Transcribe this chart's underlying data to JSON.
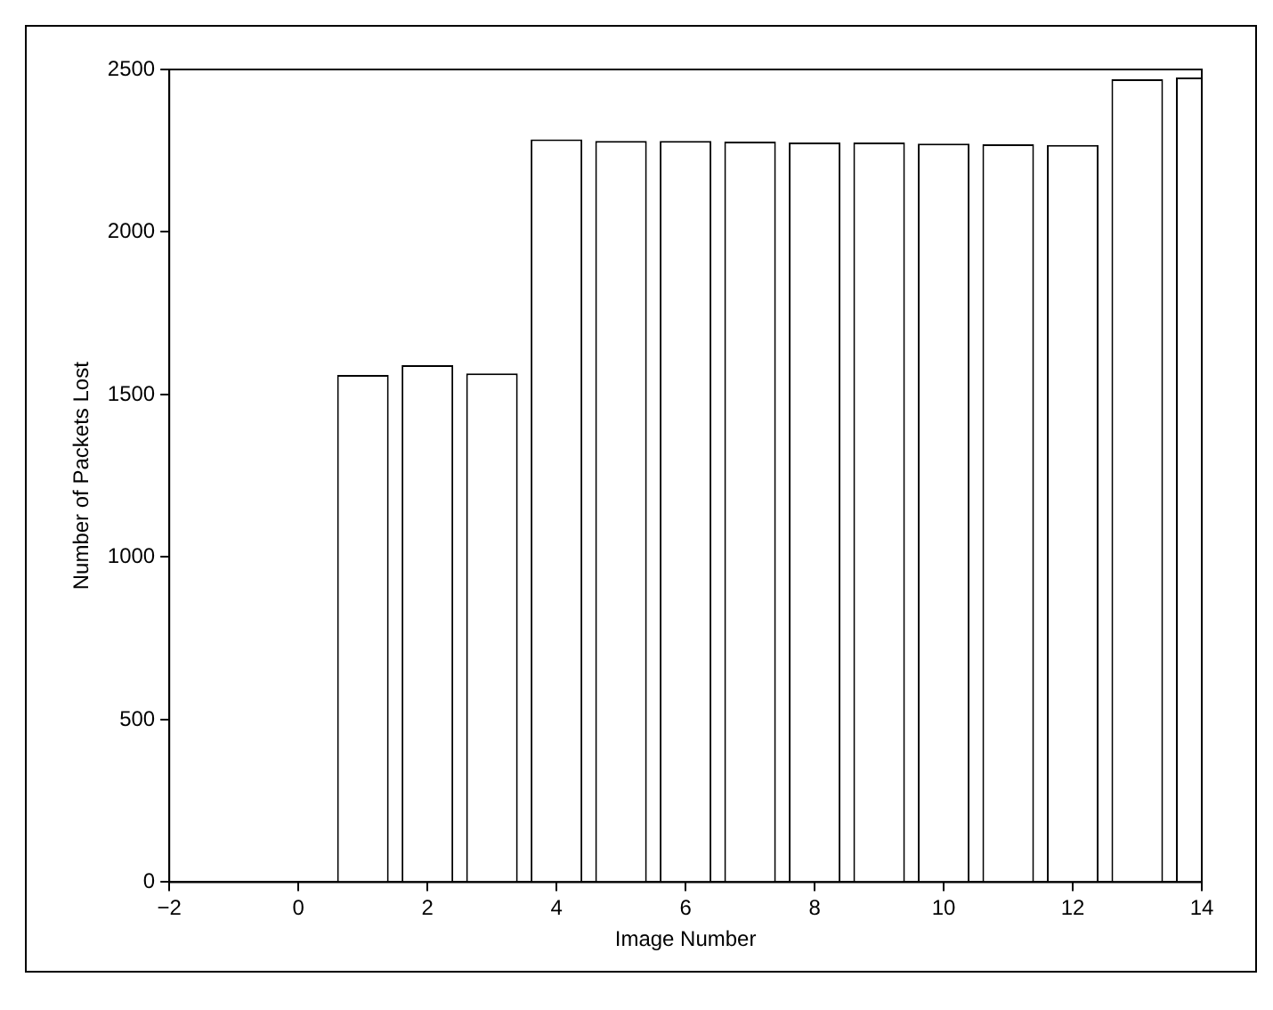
{
  "chart_data": {
    "type": "bar",
    "xlabel": "Image Number",
    "ylabel": "Number of Packets Lost",
    "x": [
      1,
      2,
      3,
      4,
      5,
      6,
      7,
      8,
      9,
      10,
      11,
      12,
      13,
      14
    ],
    "values": [
      1560,
      1590,
      1565,
      2285,
      2280,
      2280,
      2278,
      2275,
      2275,
      2272,
      2270,
      2268,
      2470,
      2475
    ],
    "color": "#ffffff",
    "xlim": [
      -2,
      14
    ],
    "xticks": [
      -2,
      0,
      2,
      4,
      6,
      8,
      10,
      12,
      14
    ],
    "ylim": [
      0,
      2500
    ],
    "yticks": [
      0,
      500,
      1000,
      1500,
      2000,
      2500
    ],
    "grid": false,
    "legend": false
  }
}
